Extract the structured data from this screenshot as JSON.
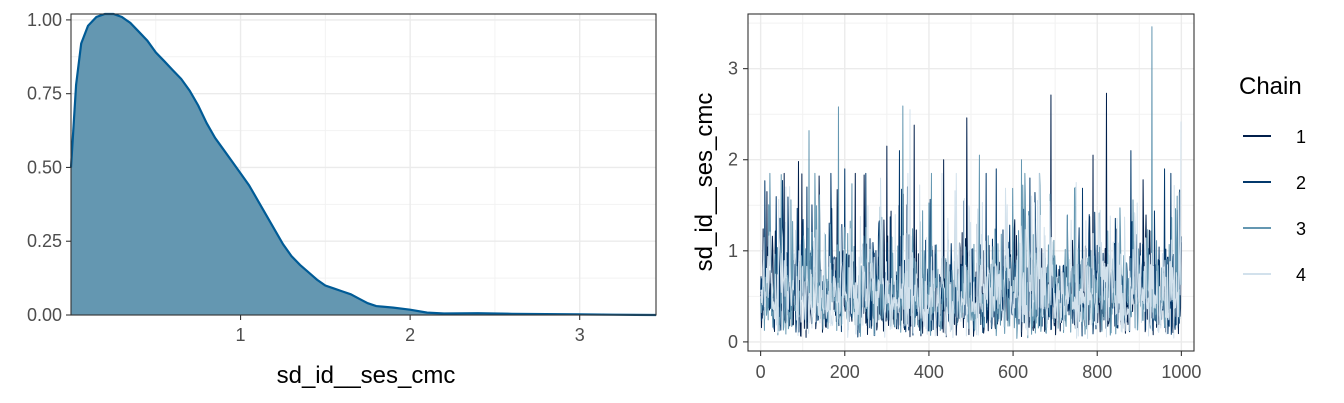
{
  "chart_data": [
    {
      "type": "area",
      "title": "",
      "xlabel": "sd_id__ses_cmc",
      "ylabel": "",
      "xlim": [
        0.0,
        3.45
      ],
      "ylim": [
        0,
        1.02
      ],
      "grid": true,
      "fill_color": "#6497b1",
      "line_color": "#005b96",
      "x_ticks": [
        {
          "value": 1,
          "label": "1"
        },
        {
          "value": 2,
          "label": "2"
        },
        {
          "value": 3,
          "label": "3"
        }
      ],
      "y_ticks": [
        {
          "value": 0,
          "label": "0.00"
        },
        {
          "value": 0.25,
          "label": "0.25"
        },
        {
          "value": 0.5,
          "label": "0.50"
        },
        {
          "value": 0.75,
          "label": "0.75"
        },
        {
          "value": 1.0,
          "label": "1.00"
        }
      ],
      "points": [
        [
          0.0,
          0.5
        ],
        [
          0.03,
          0.78
        ],
        [
          0.06,
          0.92
        ],
        [
          0.1,
          0.98
        ],
        [
          0.15,
          1.01
        ],
        [
          0.2,
          1.02
        ],
        [
          0.25,
          1.02
        ],
        [
          0.3,
          1.01
        ],
        [
          0.35,
          0.99
        ],
        [
          0.4,
          0.96
        ],
        [
          0.45,
          0.93
        ],
        [
          0.5,
          0.89
        ],
        [
          0.55,
          0.86
        ],
        [
          0.6,
          0.83
        ],
        [
          0.65,
          0.8
        ],
        [
          0.7,
          0.76
        ],
        [
          0.75,
          0.71
        ],
        [
          0.8,
          0.65
        ],
        [
          0.85,
          0.6
        ],
        [
          0.9,
          0.56
        ],
        [
          0.95,
          0.52
        ],
        [
          1.0,
          0.48
        ],
        [
          1.05,
          0.44
        ],
        [
          1.1,
          0.39
        ],
        [
          1.15,
          0.34
        ],
        [
          1.2,
          0.29
        ],
        [
          1.25,
          0.24
        ],
        [
          1.3,
          0.2
        ],
        [
          1.35,
          0.17
        ],
        [
          1.4,
          0.145
        ],
        [
          1.45,
          0.12
        ],
        [
          1.5,
          0.1
        ],
        [
          1.55,
          0.09
        ],
        [
          1.6,
          0.08
        ],
        [
          1.65,
          0.07
        ],
        [
          1.7,
          0.055
        ],
        [
          1.75,
          0.04
        ],
        [
          1.8,
          0.03
        ],
        [
          1.9,
          0.025
        ],
        [
          2.0,
          0.018
        ],
        [
          2.1,
          0.008
        ],
        [
          2.2,
          0.005
        ],
        [
          2.4,
          0.006
        ],
        [
          2.6,
          0.004
        ],
        [
          2.8,
          0.003
        ],
        [
          3.0,
          0.002
        ],
        [
          3.2,
          0.001
        ],
        [
          3.45,
          0.0
        ]
      ]
    },
    {
      "type": "line",
      "title": "",
      "xlabel": "",
      "ylabel": "sd_id__ses_cmc",
      "xlim": [
        -30,
        1030
      ],
      "ylim": [
        -0.1,
        3.6
      ],
      "grid": true,
      "legend": {
        "title": "Chain",
        "position": "right"
      },
      "x_ticks": [
        {
          "value": 0,
          "label": "0"
        },
        {
          "value": 200,
          "label": "200"
        },
        {
          "value": 400,
          "label": "400"
        },
        {
          "value": 600,
          "label": "600"
        },
        {
          "value": 800,
          "label": "800"
        },
        {
          "value": 1000,
          "label": "1000"
        }
      ],
      "y_ticks": [
        {
          "value": 0,
          "label": "0"
        },
        {
          "value": 1,
          "label": "1"
        },
        {
          "value": 2,
          "label": "2"
        },
        {
          "value": 3,
          "label": "3"
        }
      ],
      "iterations": 1000,
      "series": [
        {
          "name": "1",
          "color": "#011f4b",
          "peaks": [
            [
              15,
              1.65
            ],
            [
              90,
              1.98
            ],
            [
              300,
              2.15
            ],
            [
              365,
              2.38
            ],
            [
              435,
              2.0
            ],
            [
              490,
              2.46
            ],
            [
              690,
              2.71
            ],
            [
              822,
              2.73
            ],
            [
              790,
              2.05
            ]
          ]
        },
        {
          "name": "2",
          "color": "#03396c",
          "peaks": [
            [
              110,
              1.7
            ],
            [
              200,
              1.9
            ],
            [
              250,
              1.85
            ],
            [
              330,
              2.1
            ],
            [
              560,
              1.9
            ],
            [
              640,
              1.8
            ],
            [
              880,
              2.1
            ],
            [
              960,
              1.9
            ]
          ]
        },
        {
          "name": "3",
          "color": "#6497b1",
          "peaks": [
            [
              115,
              2.32
            ],
            [
              185,
              2.58
            ],
            [
              338,
              2.59
            ],
            [
              520,
              2.05
            ],
            [
              620,
              2.0
            ],
            [
              930,
              3.46
            ],
            [
              990,
              1.6
            ]
          ]
        },
        {
          "name": "4",
          "color": "#d2e1ec",
          "peaks": [
            [
              60,
              1.7
            ],
            [
              355,
              2.55
            ],
            [
              750,
              1.75
            ],
            [
              1000,
              2.42
            ]
          ]
        }
      ]
    }
  ]
}
